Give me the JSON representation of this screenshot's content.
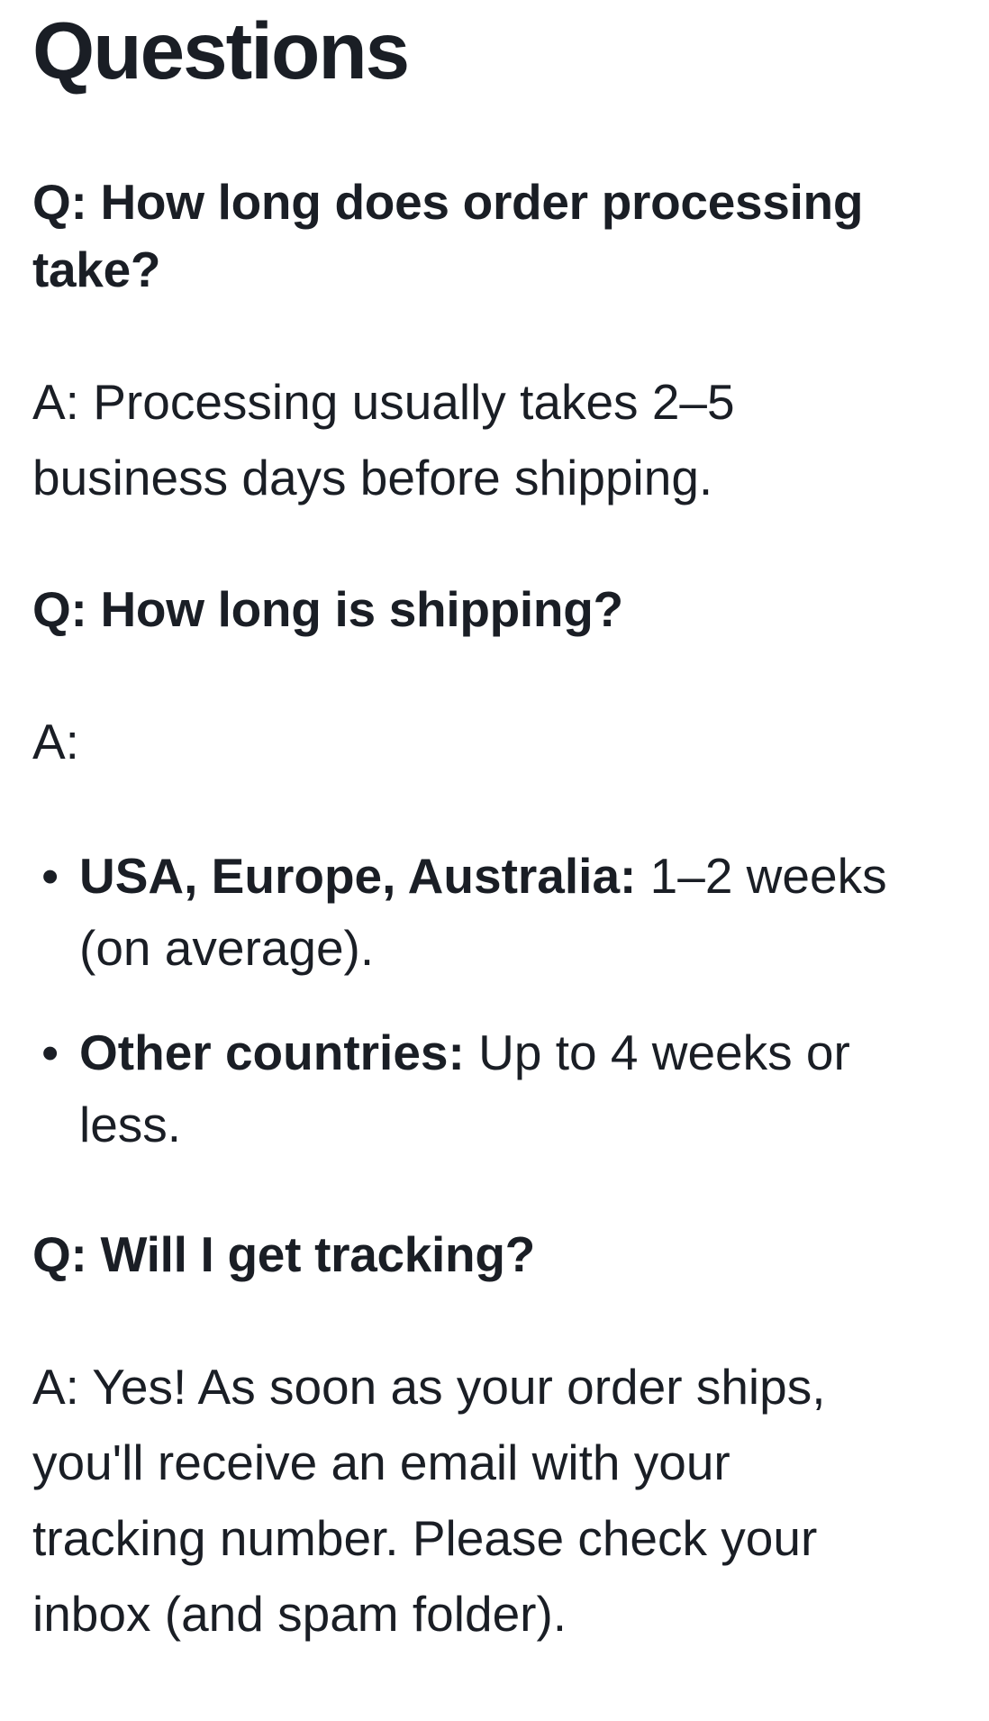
{
  "page": {
    "title": "Questions",
    "text_color": "#1a1e25",
    "background_color": "#ffffff",
    "bullet_glyph": "•",
    "faq": [
      {
        "question": "Q: How long does order processing\ntake?",
        "answer": "A: Processing usually takes 2–5\nbusiness days before shipping."
      },
      {
        "question": "Q: How long is shipping?",
        "answer": "A:",
        "bullets": [
          {
            "lead": "USA, Europe, Australia:",
            "rest": "1–2 weeks\n(on average)."
          },
          {
            "lead": "Other countries:",
            "rest": "Up to 4 weeks or\nless."
          }
        ]
      },
      {
        "question": "Q: Will I get tracking?",
        "answer": "A: Yes! As soon as your order ships,\nyou'll receive an email with your\ntracking number. Please check your\ninbox (and spam folder)."
      }
    ]
  }
}
